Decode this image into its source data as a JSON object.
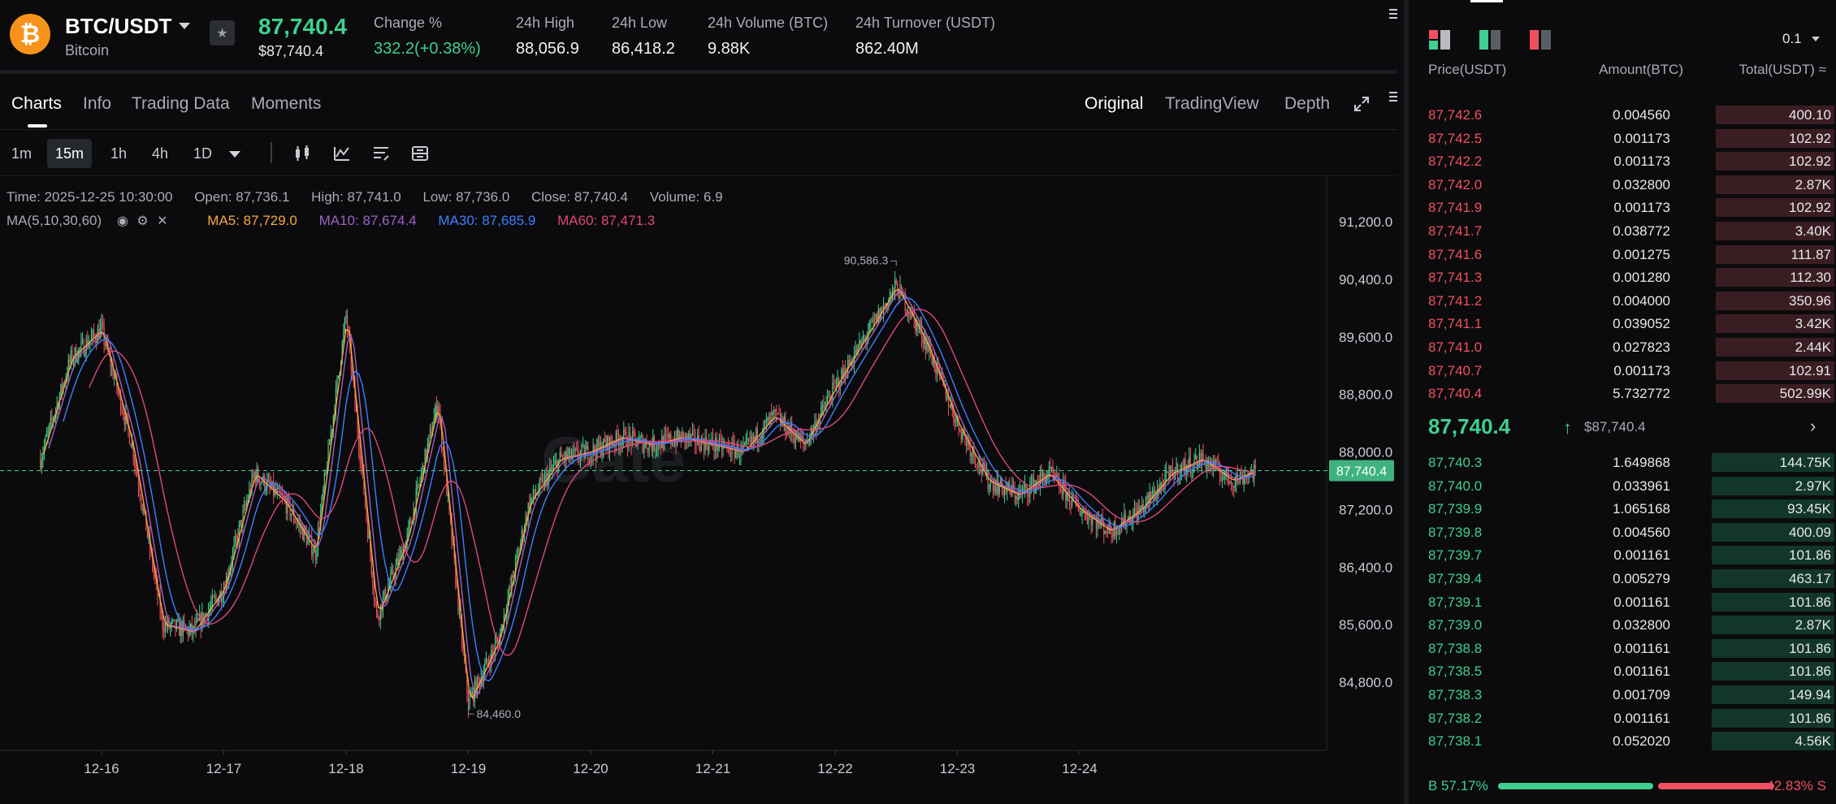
{
  "ticker": {
    "coin_symbol": "₿",
    "pair": "BTC/USDT",
    "coin_name": "Bitcoin",
    "last_price": "87,740.4",
    "last_price_fiat": "$87,740.4",
    "stats": [
      {
        "label": "Change %",
        "value": "332.2(+0.38%)",
        "color": "green"
      },
      {
        "label": "24h High",
        "value": "88,056.9"
      },
      {
        "label": "24h Low",
        "value": "86,418.2"
      },
      {
        "label": "24h Volume (BTC)",
        "value": "9.88K"
      },
      {
        "label": "24h Turnover (USDT)",
        "value": "862.40M"
      }
    ]
  },
  "chart_tabs": {
    "left": [
      "Charts",
      "Info",
      "Trading Data",
      "Moments"
    ],
    "right": [
      "Original",
      "TradingView",
      "Depth"
    ]
  },
  "intervals": [
    "1m",
    "15m",
    "1h",
    "4h",
    "1D"
  ],
  "ohlc": {
    "time": "Time: 2025-12-25 10:30:00",
    "open": "Open: 87,736.1",
    "high": "High: 87,741.0",
    "low": "Low: 87,736.0",
    "close": "Close: 87,740.4",
    "volume": "Volume: 6.9"
  },
  "ma": {
    "label": "MA(5,10,30,60)",
    "ma5": "MA5: 87,729.0",
    "ma10": "MA10: 87,674.4",
    "ma30": "MA30: 87,685.9",
    "ma60": "MA60: 87,471.3"
  },
  "colors": {
    "up": "#3fcf8e",
    "down": "#f0505f",
    "ma5": "#f5a742",
    "ma10": "#a060c8",
    "ma30": "#3d7fff",
    "ma60": "#e0477a"
  },
  "chart_data": {
    "type": "line",
    "y_ticks": [
      "91,200.0",
      "90,400.0",
      "89,600.0",
      "88,800.0",
      "88,000.0",
      "87,200.0",
      "86,400.0",
      "85,600.0",
      "84,800.0"
    ],
    "y_values": [
      91200,
      90400,
      89600,
      88800,
      88000,
      87200,
      86400,
      85600,
      84800
    ],
    "x_ticks": [
      "12-16",
      "12-17",
      "12-18",
      "12-19",
      "12-20",
      "12-21",
      "12-22",
      "12-23",
      "12-24"
    ],
    "current_price_label": "87,740.4",
    "current_price": 87740.4,
    "max_label": "90,586.3",
    "max_value": 90586.3,
    "min_label": "84,460.0",
    "min_value": 84460.0,
    "watermark": "Gate",
    "price_series": [
      {
        "x": "12-15 12:00",
        "y": 87900
      },
      {
        "x": "12-15 18:00",
        "y": 89300
      },
      {
        "x": "12-16 00:00",
        "y": 89700
      },
      {
        "x": "12-16 06:00",
        "y": 88100
      },
      {
        "x": "12-16 12:00",
        "y": 85600
      },
      {
        "x": "12-16 18:00",
        "y": 85500
      },
      {
        "x": "12-17 00:00",
        "y": 86100
      },
      {
        "x": "12-17 06:00",
        "y": 87700
      },
      {
        "x": "12-17 12:00",
        "y": 87300
      },
      {
        "x": "12-17 18:00",
        "y": 86600
      },
      {
        "x": "12-18 00:00",
        "y": 89900
      },
      {
        "x": "12-18 06:00",
        "y": 85700
      },
      {
        "x": "12-18 12:00",
        "y": 86800
      },
      {
        "x": "12-18 18:00",
        "y": 88700
      },
      {
        "x": "12-19 00:00",
        "y": 84500
      },
      {
        "x": "12-19 06:00",
        "y": 85400
      },
      {
        "x": "12-19 12:00",
        "y": 87300
      },
      {
        "x": "12-19 18:00",
        "y": 87900
      },
      {
        "x": "12-20 00:00",
        "y": 88000
      },
      {
        "x": "12-20 06:00",
        "y": 88200
      },
      {
        "x": "12-20 12:00",
        "y": 88100
      },
      {
        "x": "12-20 18:00",
        "y": 88200
      },
      {
        "x": "12-21 00:00",
        "y": 88100
      },
      {
        "x": "12-21 06:00",
        "y": 88000
      },
      {
        "x": "12-21 12:00",
        "y": 88500
      },
      {
        "x": "12-21 18:00",
        "y": 88100
      },
      {
        "x": "12-22 00:00",
        "y": 88900
      },
      {
        "x": "12-22 06:00",
        "y": 89600
      },
      {
        "x": "12-22 12:00",
        "y": 90300
      },
      {
        "x": "12-22 18:00",
        "y": 89500
      },
      {
        "x": "12-23 00:00",
        "y": 88400
      },
      {
        "x": "12-23 06:00",
        "y": 87600
      },
      {
        "x": "12-23 12:00",
        "y": 87400
      },
      {
        "x": "12-23 18:00",
        "y": 87700
      },
      {
        "x": "12-24 00:00",
        "y": 87200
      },
      {
        "x": "12-24 06:00",
        "y": 86900
      },
      {
        "x": "12-24 12:00",
        "y": 87200
      },
      {
        "x": "12-24 18:00",
        "y": 87700
      },
      {
        "x": "12-25 00:00",
        "y": 87900
      },
      {
        "x": "12-25 06:00",
        "y": 87600
      },
      {
        "x": "12-25 10:30",
        "y": 87740.4
      }
    ]
  },
  "orderbook": {
    "step": "0.1",
    "headers": [
      "Price(USDT)",
      "Amount(BTC)",
      "Total(USDT) ≈"
    ],
    "asks": [
      {
        "price": "87,742.6",
        "amount": "0.004560",
        "total": "400.10",
        "depth": 0.28
      },
      {
        "price": "87,742.5",
        "amount": "0.001173",
        "total": "102.92",
        "depth": 0.28
      },
      {
        "price": "87,742.2",
        "amount": "0.001173",
        "total": "102.92",
        "depth": 0.28
      },
      {
        "price": "87,742.0",
        "amount": "0.032800",
        "total": "2.87K",
        "depth": 0.28
      },
      {
        "price": "87,741.9",
        "amount": "0.001173",
        "total": "102.92",
        "depth": 0.28
      },
      {
        "price": "87,741.7",
        "amount": "0.038772",
        "total": "3.40K",
        "depth": 0.28
      },
      {
        "price": "87,741.6",
        "amount": "0.001275",
        "total": "111.87",
        "depth": 0.28
      },
      {
        "price": "87,741.3",
        "amount": "0.001280",
        "total": "112.30",
        "depth": 0.28
      },
      {
        "price": "87,741.2",
        "amount": "0.004000",
        "total": "350.96",
        "depth": 0.28
      },
      {
        "price": "87,741.1",
        "amount": "0.039052",
        "total": "3.42K",
        "depth": 0.28
      },
      {
        "price": "87,741.0",
        "amount": "0.027823",
        "total": "2.44K",
        "depth": 0.28
      },
      {
        "price": "87,740.7",
        "amount": "0.001173",
        "total": "102.91",
        "depth": 0.28
      },
      {
        "price": "87,740.4",
        "amount": "5.732772",
        "total": "502.99K",
        "depth": 0.28
      }
    ],
    "mid_price": "87,740.4",
    "mid_arrow": "↑",
    "mid_fiat": "$87,740.4",
    "mid_chevron": "›",
    "bids": [
      {
        "price": "87,740.3",
        "amount": "1.649868",
        "total": "144.75K",
        "depth": 0.29
      },
      {
        "price": "87,740.0",
        "amount": "0.033961",
        "total": "2.97K",
        "depth": 0.29
      },
      {
        "price": "87,739.9",
        "amount": "1.065168",
        "total": "93.45K",
        "depth": 0.29
      },
      {
        "price": "87,739.8",
        "amount": "0.004560",
        "total": "400.09",
        "depth": 0.29
      },
      {
        "price": "87,739.7",
        "amount": "0.001161",
        "total": "101.86",
        "depth": 0.29
      },
      {
        "price": "87,739.4",
        "amount": "0.005279",
        "total": "463.17",
        "depth": 0.29
      },
      {
        "price": "87,739.1",
        "amount": "0.001161",
        "total": "101.86",
        "depth": 0.29
      },
      {
        "price": "87,739.0",
        "amount": "0.032800",
        "total": "2.87K",
        "depth": 0.29
      },
      {
        "price": "87,738.8",
        "amount": "0.001161",
        "total": "101.86",
        "depth": 0.29
      },
      {
        "price": "87,738.5",
        "amount": "0.001161",
        "total": "101.86",
        "depth": 0.29
      },
      {
        "price": "87,738.3",
        "amount": "0.001709",
        "total": "149.94",
        "depth": 0.29
      },
      {
        "price": "87,738.2",
        "amount": "0.001161",
        "total": "101.86",
        "depth": 0.29
      },
      {
        "price": "87,738.1",
        "amount": "0.052020",
        "total": "4.56K",
        "depth": 0.29
      }
    ],
    "buy_ratio_label": "B 57.17%",
    "sell_ratio_label": "42.83% S",
    "buy_ratio": 0.5717
  }
}
